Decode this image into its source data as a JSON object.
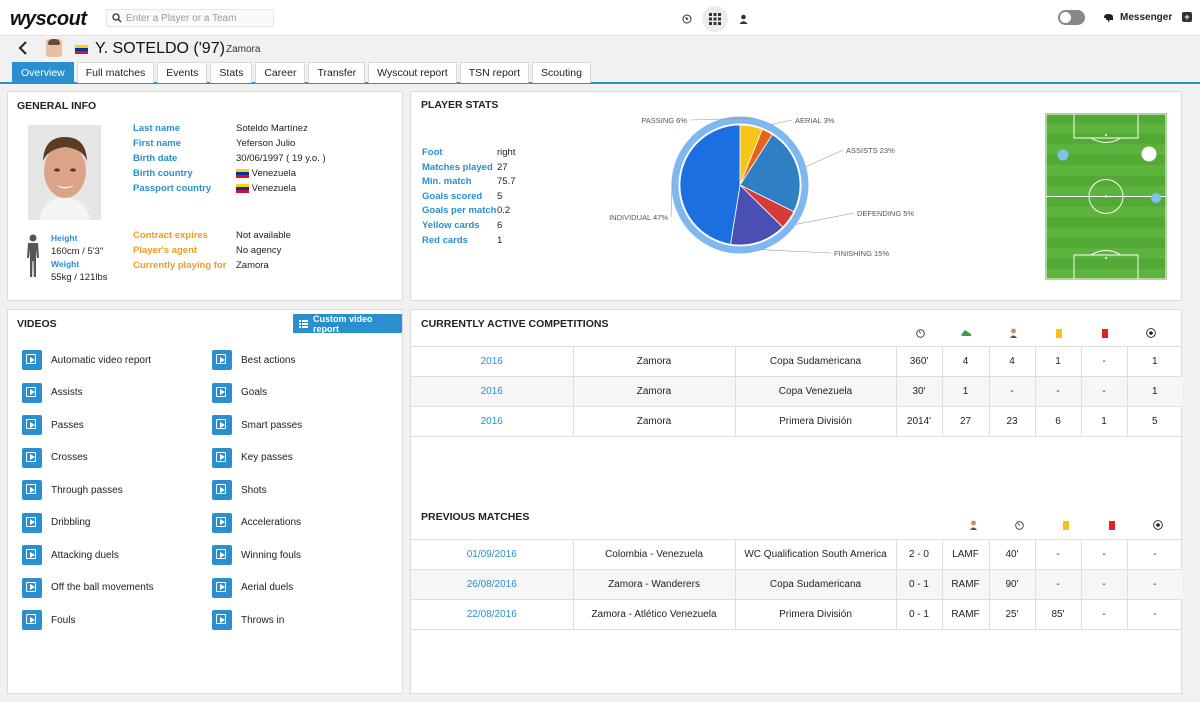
{
  "topbar": {
    "logo": "wyscout",
    "search_placeholder": "Enter a Player or a Team",
    "messenger_label": "Messenger"
  },
  "player": {
    "name": "Y. SOTELDO ('97)",
    "team": "Zamora"
  },
  "tabs": [
    "Overview",
    "Full matches",
    "Events",
    "Stats",
    "Career",
    "Transfer",
    "Wyscout report",
    "TSN report",
    "Scouting"
  ],
  "general_info": {
    "title": "GENERAL INFO",
    "fields": [
      {
        "label": "Last name",
        "value": "Soteldo Martínez"
      },
      {
        "label": "First name",
        "value": "Yeferson Julio"
      },
      {
        "label": "Birth date",
        "value": "30/06/1997 ( 19 y.o. )"
      },
      {
        "label": "Birth country",
        "value": "Venezuela"
      },
      {
        "label": "Passport country",
        "value": "Venezuela"
      }
    ],
    "contract": [
      {
        "label": "Contract expires",
        "value": "Not available"
      },
      {
        "label": "Player's agent",
        "value": "No agency"
      },
      {
        "label": "Currently playing for",
        "value": "Zamora"
      }
    ],
    "height_label": "Height",
    "height_value": "160cm / 5'3''",
    "weight_label": "Weight",
    "weight_value": "55kg / 121lbs"
  },
  "player_stats": {
    "title": "PLAYER STATS",
    "rows": [
      {
        "label": "Foot",
        "value": "right"
      },
      {
        "label": "Matches played",
        "value": "27"
      },
      {
        "label": "Min. match",
        "value": "75.7"
      },
      {
        "label": "Goals scored",
        "value": "5"
      },
      {
        "label": "Goals per match",
        "value": "0.2"
      },
      {
        "label": "Yellow cards",
        "value": "6"
      },
      {
        "label": "Red cards",
        "value": "1"
      }
    ]
  },
  "chart_data": {
    "type": "pie",
    "slices": [
      {
        "label": "PASSING",
        "value": 6,
        "text": "PASSING 6%",
        "color": "#f5c518"
      },
      {
        "label": "AERIAL",
        "value": 3,
        "text": "AERIAL 3%",
        "color": "#e8631a"
      },
      {
        "label": "ASSISTS",
        "value": 23,
        "text": "ASSISTS 23%",
        "color": "#2f7fc4"
      },
      {
        "label": "DEFENDING",
        "value": 5,
        "text": "DEFENDING 5%",
        "color": "#d63a36"
      },
      {
        "label": "FINISHING",
        "value": 15,
        "text": "FINISHING 15%",
        "color": "#4a4fb3"
      },
      {
        "label": "INDIVIDUAL",
        "value": 47,
        "text": "INDIVIDUAL 47%",
        "color": "#1b6fe0"
      }
    ]
  },
  "videos": {
    "title": "VIDEOS",
    "custom_button": "Custom video report",
    "left": [
      "Automatic video report",
      "Assists",
      "Passes",
      "Crosses",
      "Through passes",
      "Dribbling",
      "Attacking duels",
      "Off the ball movements",
      "Fouls"
    ],
    "right": [
      "Best actions",
      "Goals",
      "Smart passes",
      "Key passes",
      "Shots",
      "Accelerations",
      "Winning fouls",
      "Aerial duels",
      "Throws in"
    ]
  },
  "competitions": {
    "title": "CURRENTLY ACTIVE COMPETITIONS",
    "rows": [
      [
        "2016",
        "Zamora",
        "Copa Sudamericana",
        "360'",
        "4",
        "4",
        "1",
        "-",
        "1"
      ],
      [
        "2016",
        "Zamora",
        "Copa Venezuela",
        "30'",
        "1",
        "-",
        "-",
        "-",
        "1"
      ],
      [
        "2016",
        "Zamora",
        "Primera División",
        "2014'",
        "27",
        "23",
        "6",
        "1",
        "5"
      ]
    ]
  },
  "previous_matches": {
    "title": "PREVIOUS MATCHES",
    "rows": [
      [
        "01/09/2016",
        "Colombia - Venezuela",
        "WC Qualification South America",
        "2 - 0",
        "LAMF",
        "40'",
        "-",
        "-",
        "-"
      ],
      [
        "26/08/2016",
        "Zamora - Wanderers",
        "Copa Sudamericana",
        "0 - 1",
        "RAMF",
        "90'",
        "-",
        "-",
        "-"
      ],
      [
        "22/08/2016",
        "Zamora - Atlético Venezuela",
        "Primera División",
        "0 - 1",
        "RAMF",
        "25'",
        "85'",
        "-",
        "-"
      ]
    ]
  },
  "colors": {
    "accent": "#2a8fcf",
    "orange": "#f29a1f",
    "pitch": "#5cb33d"
  }
}
